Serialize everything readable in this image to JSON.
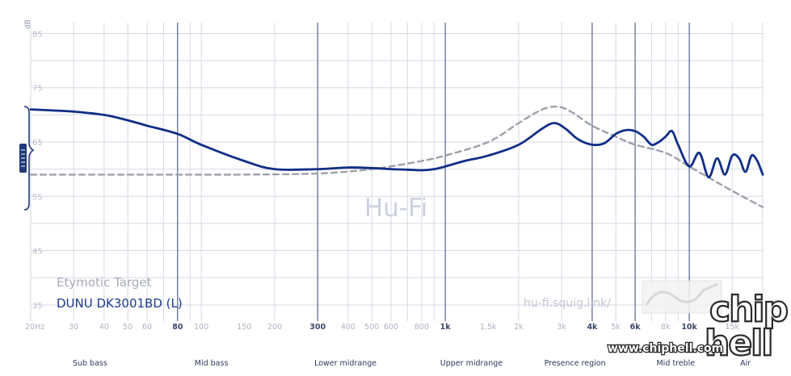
{
  "chart_data": {
    "type": "line",
    "ylabel": "dB",
    "y_ticks": [
      85,
      75,
      65,
      55,
      45,
      35
    ],
    "ylim": [
      32,
      87
    ],
    "x_scale": "log",
    "xlim": [
      20,
      20000
    ],
    "x_ticks": [
      {
        "value": 20,
        "label": "20Hz",
        "major": false
      },
      {
        "value": 30,
        "label": "30",
        "major": false
      },
      {
        "value": 40,
        "label": "40",
        "major": false
      },
      {
        "value": 50,
        "label": "50",
        "major": false
      },
      {
        "value": 60,
        "label": "60",
        "major": false
      },
      {
        "value": 80,
        "label": "80",
        "major": true
      },
      {
        "value": 100,
        "label": "100",
        "major": false
      },
      {
        "value": 150,
        "label": "150",
        "major": false
      },
      {
        "value": 200,
        "label": "200",
        "major": false
      },
      {
        "value": 300,
        "label": "300",
        "major": true
      },
      {
        "value": 400,
        "label": "400",
        "major": false
      },
      {
        "value": 500,
        "label": "500",
        "major": false
      },
      {
        "value": 600,
        "label": "600",
        "major": false
      },
      {
        "value": 800,
        "label": "800",
        "major": false
      },
      {
        "value": 1000,
        "label": "1k",
        "major": true
      },
      {
        "value": 1500,
        "label": "1.5k",
        "major": false
      },
      {
        "value": 2000,
        "label": "2k",
        "major": false
      },
      {
        "value": 3000,
        "label": "3k",
        "major": false
      },
      {
        "value": 4000,
        "label": "4k",
        "major": true
      },
      {
        "value": 5000,
        "label": "5k",
        "major": false
      },
      {
        "value": 6000,
        "label": "6k",
        "major": true
      },
      {
        "value": 8000,
        "label": "8k",
        "major": false
      },
      {
        "value": 10000,
        "label": "10k",
        "major": true
      },
      {
        "value": 15000,
        "label": "15k",
        "major": false
      }
    ],
    "bands": [
      {
        "label": "Sub bass",
        "value": 35
      },
      {
        "label": "Mid bass",
        "value": 110
      },
      {
        "label": "Lower midrange",
        "value": 390
      },
      {
        "label": "Upper midrange",
        "value": 1280
      },
      {
        "label": "Presence region",
        "value": 3400
      },
      {
        "label": "Mid treble",
        "value": 8800
      },
      {
        "label": "Air",
        "value": 17000
      }
    ],
    "grid": true,
    "legend_position": "bottom-left",
    "series": [
      {
        "name": "Etymotic Target",
        "style": "dashed",
        "color": "#9ea1ab",
        "x": [
          20,
          40,
          80,
          150,
          300,
          500,
          800,
          1000,
          1500,
          2000,
          2500,
          2900,
          3300,
          4000,
          5000,
          6000,
          8000,
          10000,
          12500,
          15000,
          20000
        ],
        "y": [
          59,
          59,
          59,
          59,
          59.2,
          60,
          61.5,
          62.5,
          65,
          68.5,
          71,
          71.5,
          70.5,
          68,
          66,
          64.5,
          63,
          60.5,
          58,
          56,
          53
        ]
      },
      {
        "name": "DUNU DK3001BD (L)",
        "style": "solid",
        "color": "#102e87",
        "x": [
          20,
          25,
          30,
          40,
          50,
          60,
          80,
          100,
          150,
          200,
          300,
          400,
          500,
          600,
          700,
          800,
          900,
          1000,
          1200,
          1500,
          2000,
          2500,
          2800,
          3100,
          3500,
          4000,
          4500,
          5000,
          5500,
          6000,
          6500,
          7000,
          7500,
          8000,
          8500,
          9000,
          10000,
          11000,
          12000,
          13000,
          14000,
          15000,
          16000,
          17000,
          18000,
          19000,
          20000
        ],
        "y": [
          71,
          70.8,
          70.6,
          70,
          69,
          68,
          66.5,
          64.5,
          61.5,
          60,
          60,
          60.3,
          60.2,
          60,
          59.9,
          59.8,
          60,
          60.5,
          61.5,
          62.5,
          64.5,
          67.5,
          68.5,
          67.5,
          65.5,
          64.5,
          64.8,
          66.5,
          67.2,
          67,
          66,
          64.5,
          65,
          66,
          67,
          64.5,
          60.5,
          63,
          58.5,
          62,
          59,
          62.5,
          62,
          59.5,
          62.5,
          61.5,
          59
        ]
      }
    ]
  },
  "watermark": "Hu-Fi",
  "site_url": "hu-fi.squig.link/",
  "overlay": {
    "logo_text": "chip hell",
    "url_text": "www.chiphell.com"
  },
  "colors": {
    "iem": "#102e87",
    "target": "#9ea1ab",
    "grid": "#d6d9e6",
    "grid_major": "#4c5880"
  }
}
